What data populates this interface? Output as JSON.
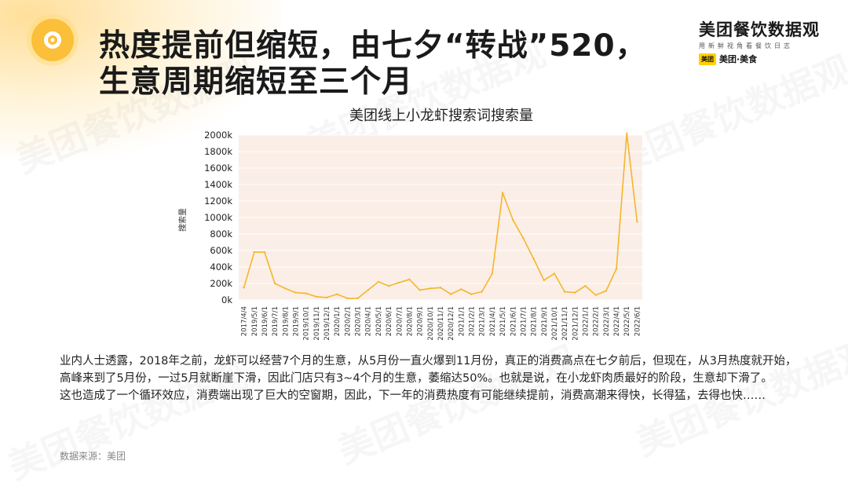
{
  "title_lines": [
    "热度提前但缩短，由七夕“转战”520，",
    "生意周期缩短至三个月"
  ],
  "brand": {
    "name": "美团餐饮数据观",
    "subtitle": "用新鲜视角看餐饮日志",
    "logo_text": "美团",
    "meituan_label": "美团·美食"
  },
  "watermark_text": "美团餐饮数据观",
  "colors": {
    "accent": "#fbbf3a",
    "line": "#f5b62a",
    "plot_bg": "#fbeee7"
  },
  "chart_data": {
    "type": "line",
    "title": "美团线上小龙虾搜索词搜索量",
    "ylabel": "搜索量",
    "xlabel": "",
    "ylim": [
      0,
      2000
    ],
    "y_ticks": [
      0,
      200,
      400,
      600,
      800,
      1000,
      1200,
      1400,
      1600,
      1800,
      2000
    ],
    "y_tick_labels": [
      "0k",
      "200k",
      "400k",
      "600k",
      "800k",
      "1000k",
      "1200k",
      "1400k",
      "1600k",
      "1800k",
      "2000k"
    ],
    "grid": true,
    "x": [
      "2017/4/4",
      "2019/5/1",
      "2019/6/1",
      "2019/7/1",
      "2019/8/1",
      "2019/9/1",
      "2019/10/1",
      "2019/11/1",
      "2019/12/1",
      "2020/1/1",
      "2020/2/1",
      "2020/3/1",
      "2020/4/1",
      "2020/5/1",
      "2020/6/1",
      "2020/7/1",
      "2020/8/1",
      "2020/9/1",
      "2020/10/1",
      "2020/11/1",
      "2020/12/1",
      "2021/1/1",
      "2021/2/1",
      "2021/3/1",
      "2021/4/1",
      "2021/5/1",
      "2021/6/1",
      "2021/7/1",
      "2021/8/1",
      "2021/9/1",
      "2021/10/1",
      "2021/11/1",
      "2021/12/1",
      "2022/1/1",
      "2022/2/1",
      "2022/3/1",
      "2022/4/1",
      "2022/5/1",
      "2022/6/1"
    ],
    "series": [
      {
        "name": "",
        "values": [
          150,
          580,
          580,
          200,
          140,
          90,
          80,
          40,
          30,
          70,
          20,
          20,
          120,
          220,
          170,
          210,
          250,
          120,
          140,
          150,
          70,
          130,
          70,
          100,
          320,
          1300,
          970,
          750,
          500,
          240,
          320,
          100,
          90,
          170,
          60,
          110,
          380,
          2020,
          950
        ]
      }
    ]
  },
  "paragraphs": [
    "业内人士透露，2018年之前，龙虾可以经营7个月的生意，从5月份一直火爆到11月份，真正的消费高点在七夕前后，但现在，从3月热度就开始，高峰来到了5月份，一过5月就断崖下滑，因此门店只有3~4个月的生意，萎缩达50%。也就是说，在小龙虾肉质最好的阶段，生意却下滑了。",
    "这也造成了一个循环效应，消费端出现了巨大的空窗期，因此，下一年的消费热度有可能继续提前，消费高潮来得快，长得猛，去得也快……"
  ],
  "source": "数据来源：美团"
}
